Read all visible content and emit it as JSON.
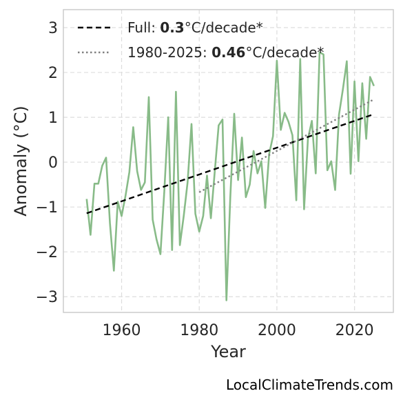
{
  "chart_data": {
    "type": "line",
    "xlabel": "Year",
    "ylabel": "Anomaly (°C)",
    "xlim": [
      1945,
      2030
    ],
    "ylim": [
      -3.35,
      3.4
    ],
    "xticks": [
      1960,
      1980,
      2000,
      2020
    ],
    "yticks": [
      -3,
      -2,
      -1,
      0,
      1,
      2,
      3
    ],
    "grid": true,
    "legend_position": "top-left",
    "series": [
      {
        "color": "#88bb88",
        "x": [
          1951,
          1952,
          1953,
          1954,
          1955,
          1956,
          1957,
          1958,
          1959,
          1960,
          1961,
          1962,
          1963,
          1964,
          1965,
          1966,
          1967,
          1968,
          1969,
          1970,
          1971,
          1972,
          1973,
          1974,
          1975,
          1976,
          1977,
          1978,
          1979,
          1980,
          1981,
          1982,
          1983,
          1984,
          1985,
          1986,
          1987,
          1988,
          1989,
          1990,
          1991,
          1992,
          1993,
          1994,
          1995,
          1996,
          1997,
          1998,
          1999,
          2000,
          2001,
          2002,
          2003,
          2004,
          2005,
          2006,
          2007,
          2008,
          2009,
          2010,
          2011,
          2012,
          2013,
          2014,
          2015,
          2016,
          2017,
          2018,
          2019,
          2020,
          2021,
          2022,
          2023,
          2024,
          2025
        ],
        "y": [
          -0.82,
          -1.62,
          -0.48,
          -0.48,
          -0.08,
          0.1,
          -1.36,
          -2.42,
          -0.88,
          -1.2,
          -0.75,
          -0.22,
          0.78,
          -0.2,
          -0.62,
          -0.45,
          1.45,
          -1.28,
          -1.72,
          -2.05,
          -0.65,
          1.0,
          -1.96,
          1.57,
          -1.85,
          -1.2,
          -0.45,
          0.85,
          -1.15,
          -1.55,
          -1.2,
          -0.3,
          -1.25,
          -0.2,
          0.82,
          0.95,
          -3.08,
          -0.78,
          1.08,
          -0.4,
          0.55,
          -0.78,
          -0.5,
          0.25,
          -0.25,
          0.02,
          -1.02,
          0.18,
          0.58,
          2.26,
          0.72,
          1.1,
          0.9,
          0.6,
          -0.85,
          2.3,
          -1.05,
          0.52,
          0.92,
          -0.25,
          2.45,
          2.4,
          -0.18,
          0.02,
          -0.62,
          1.06,
          1.62,
          2.25,
          -0.26,
          1.8,
          0.02,
          1.76,
          0.52,
          1.9,
          1.7
        ]
      }
    ],
    "trends": [
      {
        "label_prefix": "Full: ",
        "value": "0.3",
        "label_suffix": "°C/decade*",
        "style": "dashed",
        "color": "#000000",
        "x": [
          1951,
          2025
        ],
        "y": [
          -1.14,
          1.07
        ]
      },
      {
        "label_prefix": "1980-2025: ",
        "value": "0.46",
        "label_suffix": "°C/decade*",
        "style": "dotted",
        "color": "#808080",
        "x": [
          1980,
          2025
        ],
        "y": [
          -0.67,
          1.4
        ]
      }
    ]
  },
  "watermark": "LocalClimateTrends.com"
}
